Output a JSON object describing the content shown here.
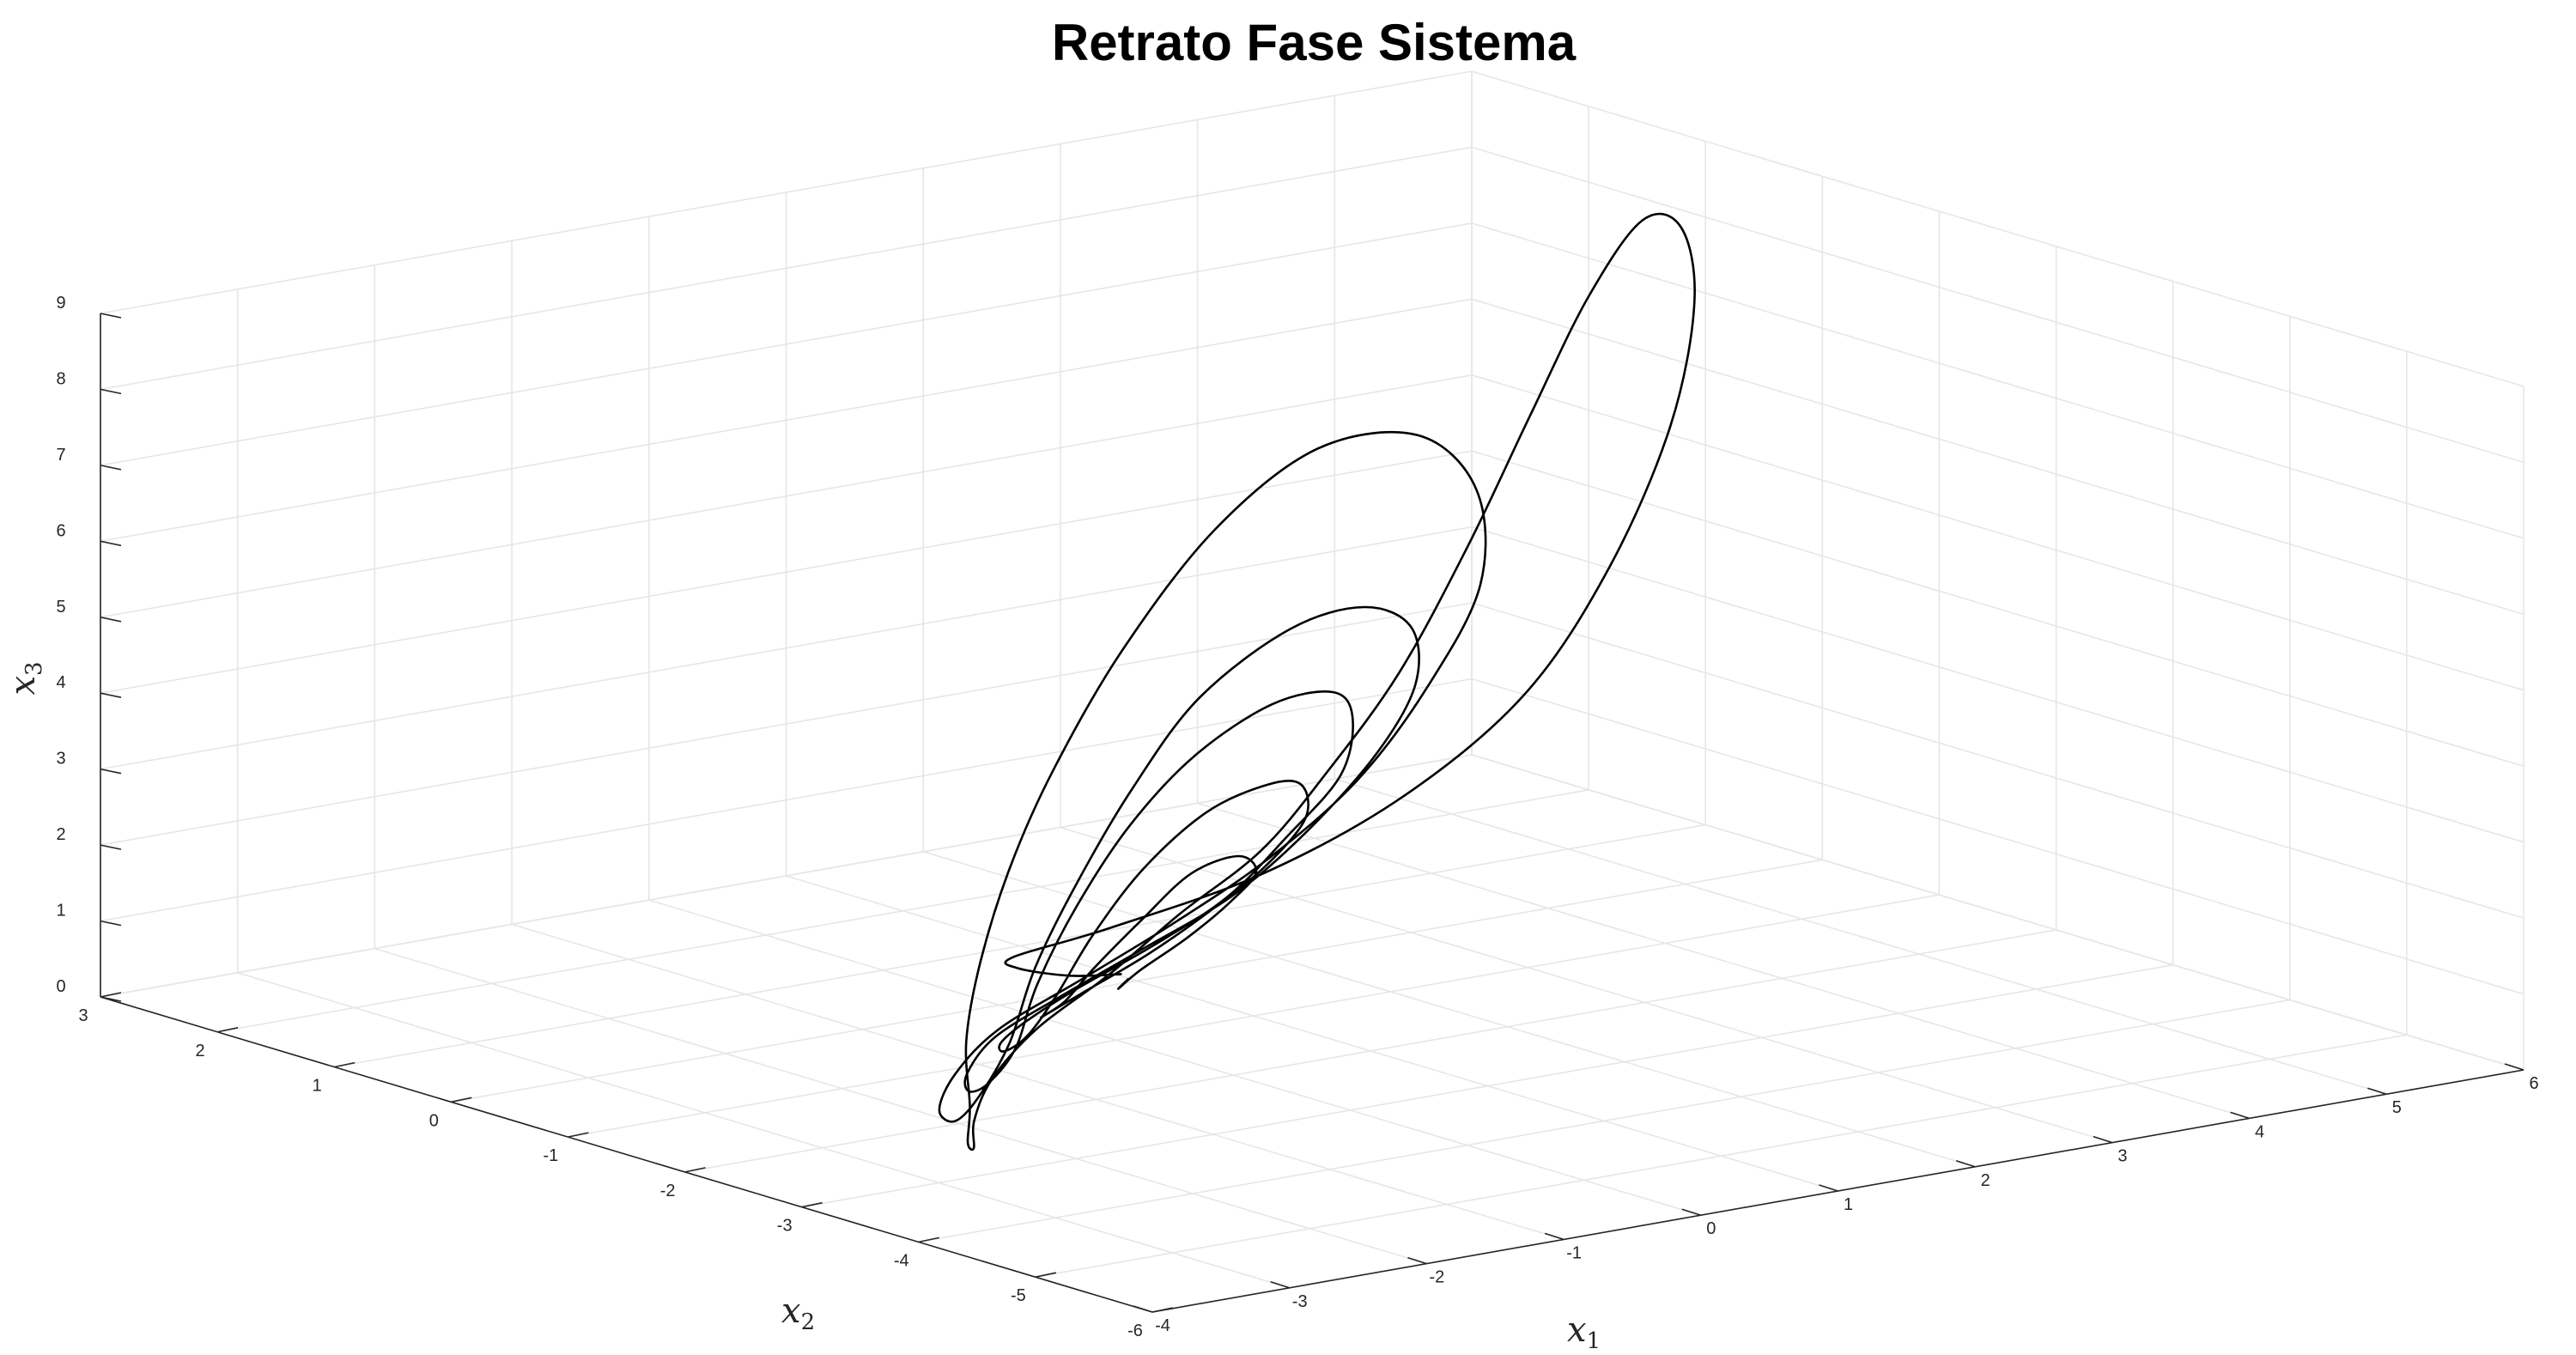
{
  "chart_data": {
    "type": "line",
    "title": "Retrato Fase Sistema",
    "axes": {
      "x1": {
        "label_base": "x",
        "label_sub": "1",
        "range": [
          -4,
          6
        ],
        "ticks": [
          -4,
          -3,
          -2,
          -1,
          0,
          1,
          2,
          3,
          4,
          5,
          6
        ]
      },
      "x2": {
        "label_base": "x",
        "label_sub": "2",
        "range": [
          -6,
          3
        ],
        "ticks": [
          -6,
          -5,
          -4,
          -3,
          -2,
          -1,
          0,
          1,
          2,
          3
        ]
      },
      "x3": {
        "label_base": "x",
        "label_sub": "3",
        "range": [
          0,
          9
        ],
        "ticks": [
          0,
          1,
          2,
          3,
          4,
          5,
          6,
          7,
          8,
          9
        ]
      }
    },
    "grid": true,
    "view": "3d",
    "series": [
      {
        "color": "#000000",
        "description_points": "phase trajectory sampled in (x1, x2, x3) data units",
        "points": [
          [
            0.8,
            -0.1,
            0.2
          ],
          [
            0.6,
            0.1,
            0.15
          ],
          [
            0.3,
            0.2,
            0.3
          ],
          [
            0.1,
            0.0,
            0.6
          ],
          [
            0.3,
            -0.6,
            1.2
          ],
          [
            0.9,
            -1.2,
            2.0
          ],
          [
            1.6,
            -1.6,
            3.0
          ],
          [
            2.3,
            -1.8,
            4.2
          ],
          [
            3.0,
            -1.7,
            5.6
          ],
          [
            3.7,
            -1.4,
            7.1
          ],
          [
            4.3,
            -0.9,
            8.3
          ],
          [
            4.8,
            -0.2,
            8.8
          ],
          [
            5.2,
            0.6,
            8.4
          ],
          [
            5.4,
            1.3,
            7.0
          ],
          [
            5.4,
            1.8,
            5.2
          ],
          [
            5.2,
            2.1,
            3.4
          ],
          [
            4.7,
            2.1,
            1.9
          ],
          [
            4.0,
            1.9,
            0.9
          ],
          [
            3.1,
            1.4,
            0.4
          ],
          [
            2.0,
            0.8,
            0.2
          ],
          [
            0.8,
            0.0,
            0.15
          ],
          [
            -0.4,
            -0.8,
            0.2
          ],
          [
            -1.5,
            -1.7,
            0.3
          ],
          [
            -2.4,
            -2.6,
            0.45
          ],
          [
            -3.0,
            -3.3,
            0.6
          ],
          [
            -3.3,
            -3.6,
            0.9
          ],
          [
            -3.2,
            -3.5,
            1.3
          ],
          [
            -2.8,
            -3.0,
            1.8
          ],
          [
            -2.1,
            -2.3,
            2.3
          ],
          [
            -1.2,
            -1.5,
            2.9
          ],
          [
            -0.2,
            -0.7,
            3.5
          ],
          [
            0.9,
            0.0,
            4.4
          ],
          [
            2.0,
            0.5,
            5.4
          ],
          [
            3.0,
            0.8,
            6.0
          ],
          [
            3.9,
            1.0,
            5.8
          ],
          [
            4.5,
            1.2,
            4.8
          ],
          [
            4.7,
            1.4,
            3.4
          ],
          [
            4.4,
            1.5,
            2.1
          ],
          [
            3.8,
            1.4,
            1.1
          ],
          [
            2.9,
            1.1,
            0.5
          ],
          [
            1.8,
            0.6,
            0.25
          ],
          [
            0.6,
            0.0,
            0.15
          ],
          [
            -0.6,
            -0.7,
            0.2
          ],
          [
            -1.6,
            -1.5,
            0.3
          ],
          [
            -2.4,
            -2.3,
            0.45
          ],
          [
            -2.8,
            -2.9,
            0.7
          ],
          [
            -2.8,
            -3.1,
            1.1
          ],
          [
            -2.4,
            -2.9,
            1.6
          ],
          [
            -1.7,
            -2.3,
            2.1
          ],
          [
            -0.8,
            -1.6,
            2.6
          ],
          [
            0.2,
            -0.9,
            3.2
          ],
          [
            1.2,
            -0.3,
            3.8
          ],
          [
            2.2,
            0.1,
            4.2
          ],
          [
            3.0,
            0.4,
            4.1
          ],
          [
            3.6,
            0.7,
            3.5
          ],
          [
            3.8,
            0.9,
            2.6
          ],
          [
            3.6,
            1.0,
            1.7
          ],
          [
            3.0,
            0.9,
            0.9
          ],
          [
            2.2,
            0.6,
            0.45
          ],
          [
            1.2,
            0.2,
            0.25
          ],
          [
            0.2,
            -0.3,
            0.2
          ],
          [
            -0.8,
            -0.9,
            0.25
          ],
          [
            -1.6,
            -1.6,
            0.35
          ],
          [
            -2.1,
            -2.2,
            0.55
          ],
          [
            -2.3,
            -2.6,
            0.9
          ],
          [
            -2.1,
            -2.6,
            1.3
          ],
          [
            -1.6,
            -2.2,
            1.8
          ],
          [
            -0.8,
            -1.6,
            2.3
          ],
          [
            0.1,
            -1.0,
            2.8
          ],
          [
            1.0,
            -0.5,
            3.2
          ],
          [
            1.9,
            -0.1,
            3.4
          ],
          [
            2.6,
            0.2,
            3.2
          ],
          [
            3.0,
            0.5,
            2.6
          ],
          [
            3.0,
            0.6,
            1.8
          ],
          [
            2.6,
            0.6,
            1.1
          ],
          [
            2.0,
            0.4,
            0.6
          ],
          [
            1.2,
            0.1,
            0.35
          ],
          [
            0.3,
            -0.3,
            0.25
          ],
          [
            -0.5,
            -0.8,
            0.3
          ],
          [
            -1.1,
            -1.3,
            0.45
          ],
          [
            -1.5,
            -1.8,
            0.7
          ],
          [
            -1.5,
            -2.0,
            1.0
          ],
          [
            -1.2,
            -1.9,
            1.4
          ],
          [
            -0.6,
            -1.5,
            1.8
          ],
          [
            0.2,
            -1.0,
            2.2
          ],
          [
            1.0,
            -0.6,
            2.5
          ],
          [
            1.7,
            -0.3,
            2.5
          ],
          [
            2.2,
            0.0,
            2.2
          ],
          [
            2.4,
            0.2,
            1.6
          ],
          [
            2.2,
            0.3,
            1.0
          ],
          [
            1.7,
            0.2,
            0.6
          ],
          [
            1.0,
            -0.1,
            0.4
          ],
          [
            0.2,
            -0.5,
            0.35
          ],
          [
            -0.4,
            -0.9,
            0.45
          ],
          [
            -0.8,
            -1.3,
            0.7
          ],
          [
            -0.8,
            -1.5,
            1.0
          ],
          [
            -0.5,
            -1.4,
            1.3
          ],
          [
            0.1,
            -1.1,
            1.6
          ],
          [
            0.8,
            -0.7,
            1.8
          ],
          [
            1.4,
            -0.4,
            1.7
          ],
          [
            1.7,
            -0.2,
            1.3
          ],
          [
            1.6,
            -0.1,
            0.9
          ],
          [
            1.2,
            -0.2,
            0.6
          ],
          [
            0.6,
            -0.5,
            0.5
          ],
          [
            0.1,
            -0.9,
            0.6
          ],
          [
            0.0,
            -1.1,
            0.85
          ]
        ]
      }
    ]
  }
}
